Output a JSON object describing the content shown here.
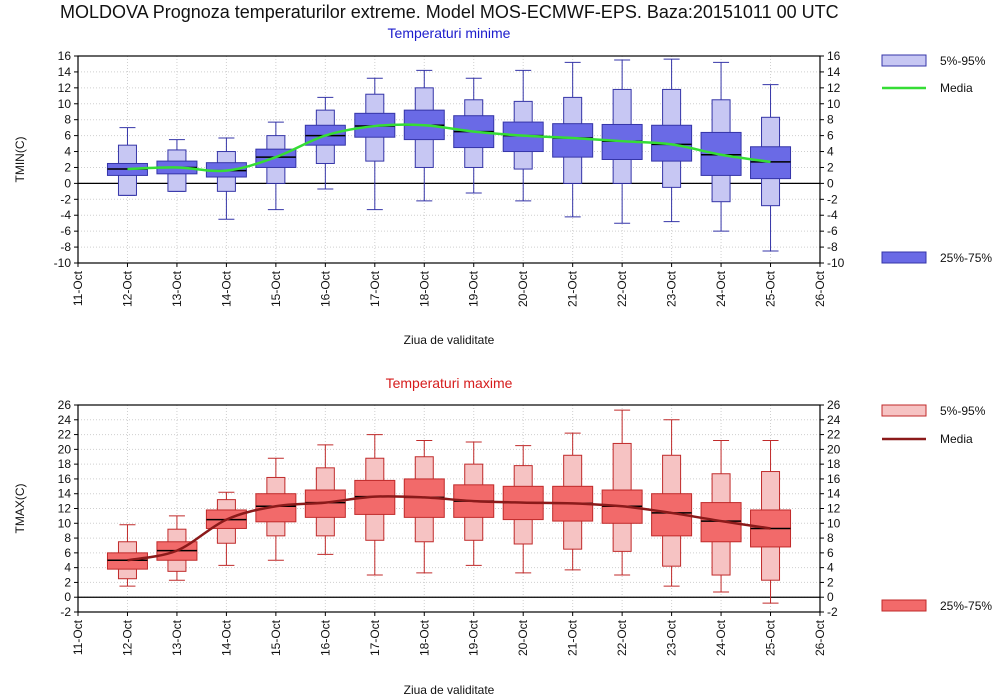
{
  "title": "MOLDOVA  Prognoza temperaturilor extreme.  Model MOS-ECMWF-EPS. Baza:20151011 00 UTC",
  "chart_data": [
    {
      "type": "box",
      "title": "Temperaturi minime",
      "title_color": "#1c1ccc",
      "xlabel": "Ziua de validitate",
      "ylabel": "TMIN(C)",
      "ylim": [
        -10,
        16
      ],
      "yticks": [
        -10,
        -8,
        -6,
        -4,
        -2,
        0,
        2,
        4,
        6,
        8,
        10,
        12,
        14,
        16
      ],
      "x_tick_labels": [
        "11-Oct",
        "12-Oct",
        "13-Oct",
        "14-Oct",
        "15-Oct",
        "16-Oct",
        "17-Oct",
        "18-Oct",
        "19-Oct",
        "20-Oct",
        "21-Oct",
        "22-Oct",
        "23-Oct",
        "24-Oct",
        "25-Oct",
        "26-Oct"
      ],
      "grid": true,
      "colors": {
        "box_outer": "#c7c7f3",
        "box_inner": "#6a6ae6",
        "edge": "#3535a8",
        "median_line": "#35dd35",
        "whisker": "#3535a8"
      },
      "legend": [
        {
          "label": "5%-95%",
          "kind": "outer"
        },
        {
          "label": "Media",
          "kind": "line"
        },
        {
          "label": "25%-75%",
          "kind": "inner"
        }
      ],
      "boxes": [
        {
          "x": "12-Oct",
          "p5": -1.5,
          "p25": 1.0,
          "median": 1.8,
          "p75": 2.5,
          "p95": 4.8,
          "min": -1.5,
          "max": 7.0
        },
        {
          "x": "13-Oct",
          "p5": -1.0,
          "p25": 1.2,
          "median": 2.0,
          "p75": 2.8,
          "p95": 4.2,
          "min": -1.0,
          "max": 5.5
        },
        {
          "x": "14-Oct",
          "p5": -1.0,
          "p25": 0.8,
          "median": 1.6,
          "p75": 2.6,
          "p95": 4.0,
          "min": -4.5,
          "max": 5.7
        },
        {
          "x": "15-Oct",
          "p5": 0.0,
          "p25": 2.0,
          "median": 3.3,
          "p75": 4.3,
          "p95": 6.0,
          "min": -3.3,
          "max": 7.7
        },
        {
          "x": "16-Oct",
          "p5": 2.5,
          "p25": 4.8,
          "median": 6.0,
          "p75": 7.3,
          "p95": 9.2,
          "min": -0.7,
          "max": 10.8
        },
        {
          "x": "17-Oct",
          "p5": 2.8,
          "p25": 5.8,
          "median": 7.2,
          "p75": 8.8,
          "p95": 11.2,
          "min": -3.3,
          "max": 13.2
        },
        {
          "x": "18-Oct",
          "p5": 2.0,
          "p25": 5.5,
          "median": 7.3,
          "p75": 9.2,
          "p95": 12.0,
          "min": -2.2,
          "max": 14.2
        },
        {
          "x": "19-Oct",
          "p5": 2.0,
          "p25": 4.5,
          "median": 6.5,
          "p75": 8.5,
          "p95": 10.5,
          "min": -1.2,
          "max": 13.2
        },
        {
          "x": "20-Oct",
          "p5": 1.8,
          "p25": 4.0,
          "median": 6.0,
          "p75": 7.7,
          "p95": 10.3,
          "min": -2.2,
          "max": 14.2
        },
        {
          "x": "21-Oct",
          "p5": 0.0,
          "p25": 3.3,
          "median": 5.7,
          "p75": 7.5,
          "p95": 10.8,
          "min": -4.2,
          "max": 15.2
        },
        {
          "x": "22-Oct",
          "p5": 0.0,
          "p25": 3.0,
          "median": 5.3,
          "p75": 7.4,
          "p95": 11.8,
          "min": -5.0,
          "max": 15.5
        },
        {
          "x": "23-Oct",
          "p5": -0.5,
          "p25": 2.8,
          "median": 4.9,
          "p75": 7.3,
          "p95": 11.8,
          "min": -4.8,
          "max": 15.6
        },
        {
          "x": "24-Oct",
          "p5": -2.3,
          "p25": 1.0,
          "median": 3.6,
          "p75": 6.4,
          "p95": 10.5,
          "min": -6.0,
          "max": 15.2
        },
        {
          "x": "25-Oct",
          "p5": -2.8,
          "p25": 0.6,
          "median": 2.7,
          "p75": 4.6,
          "p95": 8.3,
          "min": -8.5,
          "max": 12.4
        }
      ],
      "mean_series": [
        1.8,
        2.0,
        1.6,
        3.3,
        6.0,
        7.2,
        7.3,
        6.5,
        6.0,
        5.7,
        5.3,
        4.9,
        3.6,
        2.7
      ]
    },
    {
      "type": "box",
      "title": "Temperaturi maxime",
      "title_color": "#d61c1c",
      "xlabel": "Ziua de validitate",
      "ylabel": "TMAX(C)",
      "ylim": [
        -2,
        26
      ],
      "yticks": [
        -2,
        0,
        2,
        4,
        6,
        8,
        10,
        12,
        14,
        16,
        18,
        20,
        22,
        24,
        26
      ],
      "x_tick_labels": [
        "11-Oct",
        "12-Oct",
        "13-Oct",
        "14-Oct",
        "15-Oct",
        "16-Oct",
        "17-Oct",
        "18-Oct",
        "19-Oct",
        "20-Oct",
        "21-Oct",
        "22-Oct",
        "23-Oct",
        "24-Oct",
        "25-Oct",
        "26-Oct"
      ],
      "grid": true,
      "colors": {
        "box_outer": "#f6c3c3",
        "box_inner": "#f26a6a",
        "edge": "#c02a2a",
        "median_line": "#8b1a1a",
        "whisker": "#c02a2a"
      },
      "legend": [
        {
          "label": "5%-95%",
          "kind": "outer"
        },
        {
          "label": "Media",
          "kind": "line"
        },
        {
          "label": "25%-75%",
          "kind": "inner"
        }
      ],
      "boxes": [
        {
          "x": "12-Oct",
          "p5": 2.5,
          "p25": 3.8,
          "median": 5.0,
          "p75": 6.0,
          "p95": 7.5,
          "min": 1.5,
          "max": 9.8
        },
        {
          "x": "13-Oct",
          "p5": 3.5,
          "p25": 5.0,
          "median": 6.3,
          "p75": 7.5,
          "p95": 9.2,
          "min": 2.3,
          "max": 11.0
        },
        {
          "x": "14-Oct",
          "p5": 7.3,
          "p25": 9.3,
          "median": 10.5,
          "p75": 11.8,
          "p95": 13.2,
          "min": 4.3,
          "max": 14.2
        },
        {
          "x": "15-Oct",
          "p5": 8.3,
          "p25": 10.2,
          "median": 12.3,
          "p75": 14.0,
          "p95": 16.2,
          "min": 5.0,
          "max": 18.8
        },
        {
          "x": "16-Oct",
          "p5": 8.3,
          "p25": 10.8,
          "median": 12.8,
          "p75": 14.5,
          "p95": 17.5,
          "min": 5.8,
          "max": 20.6
        },
        {
          "x": "17-Oct",
          "p5": 7.7,
          "p25": 11.2,
          "median": 13.6,
          "p75": 15.8,
          "p95": 18.8,
          "min": 3.0,
          "max": 22.0
        },
        {
          "x": "18-Oct",
          "p5": 7.5,
          "p25": 10.8,
          "median": 13.5,
          "p75": 16.0,
          "p95": 19.0,
          "min": 3.3,
          "max": 21.2
        },
        {
          "x": "19-Oct",
          "p5": 7.7,
          "p25": 10.8,
          "median": 13.0,
          "p75": 15.2,
          "p95": 18.0,
          "min": 4.3,
          "max": 21.0
        },
        {
          "x": "20-Oct",
          "p5": 7.2,
          "p25": 10.5,
          "median": 12.8,
          "p75": 15.0,
          "p95": 17.8,
          "min": 3.3,
          "max": 20.5
        },
        {
          "x": "21-Oct",
          "p5": 6.5,
          "p25": 10.3,
          "median": 12.7,
          "p75": 15.0,
          "p95": 19.2,
          "min": 3.7,
          "max": 22.2
        },
        {
          "x": "22-Oct",
          "p5": 6.2,
          "p25": 10.0,
          "median": 12.3,
          "p75": 14.5,
          "p95": 20.8,
          "min": 3.0,
          "max": 25.3
        },
        {
          "x": "23-Oct",
          "p5": 4.2,
          "p25": 8.3,
          "median": 11.4,
          "p75": 14.0,
          "p95": 19.2,
          "min": 1.5,
          "max": 24.0
        },
        {
          "x": "24-Oct",
          "p5": 3.0,
          "p25": 7.5,
          "median": 10.3,
          "p75": 12.8,
          "p95": 16.7,
          "min": 0.7,
          "max": 21.2
        },
        {
          "x": "25-Oct",
          "p5": 2.3,
          "p25": 6.8,
          "median": 9.3,
          "p75": 11.8,
          "p95": 17.0,
          "min": -0.8,
          "max": 21.2
        }
      ],
      "mean_series": [
        5.0,
        6.3,
        10.5,
        12.3,
        12.8,
        13.6,
        13.5,
        13.0,
        12.8,
        12.7,
        12.3,
        11.4,
        10.3,
        9.3
      ]
    }
  ]
}
